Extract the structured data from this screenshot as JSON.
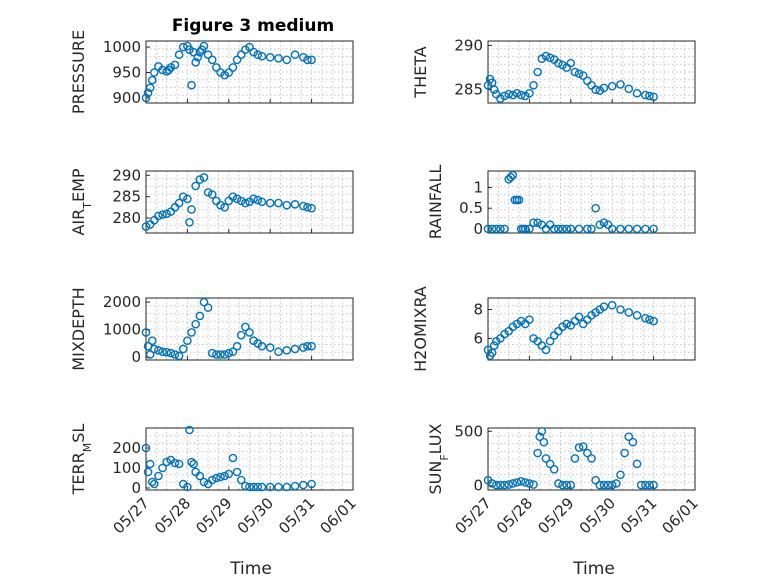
{
  "figure_title": "Figure 3 medium",
  "shared_xlabel": "Time",
  "chart_data": [
    {
      "type": "scatter",
      "id": "pressure",
      "ylabel": "PRESSURE",
      "title": "Figure 3 medium",
      "xlim": [
        0,
        5
      ],
      "ylim": [
        890,
        1012
      ],
      "yticks": [
        900,
        950,
        1000
      ],
      "xticks": [
        0,
        1,
        2,
        3,
        4,
        5
      ],
      "xticklabels": [
        "05/27",
        "05/28",
        "05/29",
        "05/30",
        "05/31",
        "06/01"
      ],
      "show_xticklabels": false,
      "x": [
        0.0,
        0.05,
        0.1,
        0.15,
        0.2,
        0.3,
        0.4,
        0.5,
        0.55,
        0.6,
        0.7,
        0.8,
        0.9,
        1.0,
        1.05,
        1.1,
        1.15,
        1.2,
        1.25,
        1.3,
        1.35,
        1.4,
        1.5,
        1.6,
        1.7,
        1.8,
        1.9,
        2.0,
        2.1,
        2.2,
        2.3,
        2.4,
        2.5,
        2.6,
        2.7,
        2.8,
        3.0,
        3.2,
        3.4,
        3.6,
        3.8,
        3.9,
        4.0
      ],
      "y": [
        900,
        910,
        920,
        935,
        950,
        962,
        955,
        952,
        955,
        960,
        965,
        985,
        1000,
        1002,
        995,
        925,
        990,
        970,
        980,
        990,
        995,
        1002,
        985,
        975,
        960,
        950,
        945,
        950,
        960,
        975,
        985,
        995,
        1000,
        990,
        985,
        982,
        980,
        978,
        975,
        985,
        980,
        975,
        975
      ]
    },
    {
      "type": "scatter",
      "id": "theta",
      "ylabel": "THETA",
      "xlim": [
        0,
        5
      ],
      "ylim": [
        283.5,
        290.5
      ],
      "yticks": [
        285,
        290
      ],
      "xticks": [
        0,
        1,
        2,
        3,
        4,
        5
      ],
      "xticklabels": [
        "05/27",
        "05/28",
        "05/29",
        "05/30",
        "05/31",
        "06/01"
      ],
      "show_xticklabels": false,
      "x": [
        0.0,
        0.05,
        0.1,
        0.15,
        0.2,
        0.3,
        0.4,
        0.5,
        0.6,
        0.7,
        0.8,
        0.9,
        1.0,
        1.1,
        1.2,
        1.3,
        1.4,
        1.5,
        1.6,
        1.7,
        1.8,
        1.9,
        2.0,
        2.1,
        2.2,
        2.3,
        2.4,
        2.5,
        2.6,
        2.7,
        2.8,
        3.0,
        3.2,
        3.4,
        3.6,
        3.8,
        3.9,
        4.0
      ],
      "y": [
        285.5,
        286.2,
        285.8,
        285.0,
        284.5,
        284.0,
        284.3,
        284.5,
        284.4,
        284.6,
        284.4,
        284.3,
        284.6,
        285.5,
        287.0,
        288.5,
        288.8,
        288.6,
        288.4,
        288.0,
        287.8,
        287.5,
        288.0,
        287.0,
        286.8,
        286.6,
        286.0,
        285.5,
        285.0,
        284.9,
        285.2,
        285.4,
        285.6,
        285.1,
        284.6,
        284.4,
        284.3,
        284.2
      ]
    },
    {
      "type": "scatter",
      "id": "air_temp",
      "ylabel": "AIR_TEMP",
      "xlim": [
        0,
        5
      ],
      "ylim": [
        276.5,
        291
      ],
      "yticks": [
        280,
        285,
        290
      ],
      "xticks": [
        0,
        1,
        2,
        3,
        4,
        5
      ],
      "xticklabels": [
        "05/27",
        "05/28",
        "05/29",
        "05/30",
        "05/31",
        "06/01"
      ],
      "show_xticklabels": false,
      "x": [
        0.0,
        0.1,
        0.2,
        0.3,
        0.4,
        0.5,
        0.6,
        0.7,
        0.8,
        0.9,
        1.0,
        1.05,
        1.1,
        1.2,
        1.3,
        1.4,
        1.5,
        1.6,
        1.7,
        1.8,
        1.9,
        2.0,
        2.1,
        2.2,
        2.3,
        2.4,
        2.5,
        2.6,
        2.7,
        2.8,
        3.0,
        3.2,
        3.4,
        3.6,
        3.8,
        3.9,
        4.0
      ],
      "y": [
        278.0,
        278.5,
        279.5,
        280.5,
        280.8,
        281.0,
        281.5,
        282.5,
        283.5,
        285.0,
        284.5,
        279.0,
        282.0,
        287.5,
        289.0,
        289.5,
        286.0,
        285.5,
        284.0,
        283.0,
        282.5,
        284.0,
        285.0,
        284.5,
        284.0,
        283.5,
        283.8,
        284.5,
        284.2,
        283.8,
        283.5,
        283.5,
        283.0,
        283.2,
        282.8,
        282.5,
        282.3
      ]
    },
    {
      "type": "scatter",
      "id": "rainfall",
      "ylabel": "RAINFALL",
      "xlim": [
        0,
        5
      ],
      "ylim": [
        -0.1,
        1.4
      ],
      "yticks": [
        0,
        0.5,
        1
      ],
      "xticks": [
        0,
        1,
        2,
        3,
        4,
        5
      ],
      "xticklabels": [
        "05/27",
        "05/28",
        "05/29",
        "05/30",
        "05/31",
        "06/01"
      ],
      "show_xticklabels": false,
      "x": [
        0.0,
        0.1,
        0.2,
        0.3,
        0.4,
        0.5,
        0.55,
        0.6,
        0.65,
        0.7,
        0.75,
        0.8,
        0.85,
        0.9,
        1.0,
        1.1,
        1.2,
        1.3,
        1.4,
        1.5,
        1.6,
        1.7,
        1.8,
        1.9,
        2.0,
        2.2,
        2.4,
        2.5,
        2.6,
        2.7,
        2.8,
        2.9,
        3.0,
        3.2,
        3.4,
        3.6,
        3.8,
        4.0
      ],
      "y": [
        0,
        0,
        0,
        0,
        0,
        1.2,
        1.25,
        1.3,
        0.7,
        0.7,
        0.7,
        0,
        0,
        0,
        0,
        0.15,
        0.15,
        0.1,
        0,
        0.1,
        0,
        0,
        0,
        0,
        0,
        0,
        0,
        0,
        0.5,
        0.1,
        0.15,
        0.1,
        0,
        0,
        0,
        0,
        0,
        0
      ]
    },
    {
      "type": "scatter",
      "id": "mixdepth",
      "ylabel": "MIXDEPTH",
      "xlim": [
        0,
        5
      ],
      "ylim": [
        -100,
        2150
      ],
      "yticks": [
        0,
        1000,
        2000
      ],
      "xticks": [
        0,
        1,
        2,
        3,
        4,
        5
      ],
      "xticklabels": [
        "05/27",
        "05/28",
        "05/29",
        "05/30",
        "05/31",
        "06/01"
      ],
      "show_xticklabels": false,
      "x": [
        0.0,
        0.05,
        0.1,
        0.15,
        0.2,
        0.3,
        0.4,
        0.5,
        0.6,
        0.7,
        0.8,
        0.9,
        1.0,
        1.1,
        1.2,
        1.3,
        1.4,
        1.5,
        1.6,
        1.7,
        1.8,
        1.9,
        2.0,
        2.1,
        2.2,
        2.3,
        2.4,
        2.5,
        2.6,
        2.7,
        2.8,
        3.0,
        3.2,
        3.4,
        3.6,
        3.8,
        3.9,
        4.0
      ],
      "y": [
        900,
        400,
        100,
        600,
        300,
        250,
        200,
        180,
        150,
        100,
        50,
        300,
        600,
        900,
        1200,
        1500,
        2000,
        1800,
        150,
        100,
        100,
        100,
        150,
        200,
        400,
        800,
        1100,
        900,
        600,
        500,
        400,
        350,
        200,
        250,
        300,
        350,
        400,
        400
      ]
    },
    {
      "type": "scatter",
      "id": "h2omixra",
      "ylabel": "H2OMIXRA",
      "xlim": [
        0,
        5
      ],
      "ylim": [
        4.5,
        8.8
      ],
      "yticks": [
        6,
        8
      ],
      "xticks": [
        0,
        1,
        2,
        3,
        4,
        5
      ],
      "xticklabels": [
        "05/27",
        "05/28",
        "05/29",
        "05/30",
        "05/31",
        "06/01"
      ],
      "show_xticklabels": false,
      "x": [
        0.0,
        0.05,
        0.1,
        0.15,
        0.2,
        0.3,
        0.4,
        0.5,
        0.6,
        0.7,
        0.8,
        0.9,
        1.0,
        1.1,
        1.2,
        1.3,
        1.4,
        1.5,
        1.6,
        1.7,
        1.8,
        1.9,
        2.0,
        2.1,
        2.2,
        2.3,
        2.4,
        2.5,
        2.6,
        2.7,
        2.8,
        3.0,
        3.2,
        3.4,
        3.6,
        3.8,
        3.9,
        4.0
      ],
      "y": [
        5.2,
        4.8,
        5.0,
        5.5,
        5.8,
        6.0,
        6.3,
        6.5,
        6.8,
        7.0,
        7.2,
        7.0,
        7.3,
        6.0,
        5.8,
        5.5,
        5.2,
        5.8,
        6.2,
        6.5,
        6.8,
        7.0,
        6.9,
        7.2,
        7.5,
        7.0,
        7.3,
        7.6,
        7.8,
        8.0,
        8.2,
        8.3,
        8.0,
        7.8,
        7.6,
        7.4,
        7.3,
        7.2
      ]
    },
    {
      "type": "scatter",
      "id": "terr_msl",
      "ylabel": "TERR_MSL",
      "xlim": [
        0,
        5
      ],
      "ylim": [
        -10,
        300
      ],
      "yticks": [
        0,
        100,
        200
      ],
      "xticks": [
        0,
        1,
        2,
        3,
        4,
        5
      ],
      "xticklabels": [
        "05/27",
        "05/28",
        "05/29",
        "05/30",
        "05/31",
        "06/01"
      ],
      "show_xticklabels": true,
      "x": [
        0.0,
        0.05,
        0.1,
        0.15,
        0.2,
        0.3,
        0.4,
        0.5,
        0.6,
        0.7,
        0.8,
        0.9,
        1.0,
        1.05,
        1.1,
        1.15,
        1.2,
        1.3,
        1.4,
        1.5,
        1.6,
        1.7,
        1.8,
        1.9,
        2.0,
        2.1,
        2.2,
        2.3,
        2.4,
        2.5,
        2.6,
        2.7,
        2.8,
        3.0,
        3.2,
        3.4,
        3.6,
        3.8,
        4.0
      ],
      "y": [
        200,
        80,
        120,
        30,
        20,
        60,
        100,
        130,
        140,
        125,
        120,
        20,
        5,
        290,
        130,
        120,
        80,
        60,
        30,
        20,
        40,
        50,
        55,
        60,
        70,
        150,
        80,
        40,
        10,
        5,
        5,
        5,
        5,
        5,
        5,
        5,
        10,
        15,
        20
      ]
    },
    {
      "type": "scatter",
      "id": "sun_flux",
      "ylabel": "SUN_FLUX",
      "xlim": [
        0,
        5
      ],
      "ylim": [
        -40,
        530
      ],
      "yticks": [
        0,
        500
      ],
      "xticks": [
        0,
        1,
        2,
        3,
        4,
        5
      ],
      "xticklabels": [
        "05/27",
        "05/28",
        "05/29",
        "05/30",
        "05/31",
        "06/01"
      ],
      "show_xticklabels": true,
      "x": [
        0.0,
        0.1,
        0.2,
        0.3,
        0.4,
        0.5,
        0.6,
        0.7,
        0.8,
        0.9,
        1.0,
        1.1,
        1.2,
        1.25,
        1.3,
        1.35,
        1.4,
        1.5,
        1.6,
        1.7,
        1.8,
        1.9,
        2.0,
        2.1,
        2.2,
        2.3,
        2.4,
        2.5,
        2.6,
        2.7,
        2.8,
        2.9,
        3.0,
        3.1,
        3.2,
        3.3,
        3.4,
        3.5,
        3.6,
        3.7,
        3.8,
        3.9,
        4.0
      ],
      "y": [
        50,
        20,
        5,
        5,
        5,
        10,
        20,
        30,
        40,
        30,
        20,
        10,
        300,
        450,
        500,
        400,
        250,
        200,
        150,
        20,
        5,
        5,
        5,
        250,
        350,
        360,
        300,
        250,
        50,
        5,
        5,
        5,
        5,
        20,
        100,
        300,
        450,
        400,
        200,
        5,
        5,
        5,
        5
      ]
    }
  ],
  "ylabels_display": {
    "air_temp": {
      "main": "AIR",
      "sub": "T",
      "rest": "EMP"
    },
    "terr_msl": {
      "main": "TERR",
      "sub": "M",
      "rest": "SL"
    },
    "sun_flux": {
      "main": "SUN",
      "sub": "F",
      "rest": "LUX"
    }
  }
}
